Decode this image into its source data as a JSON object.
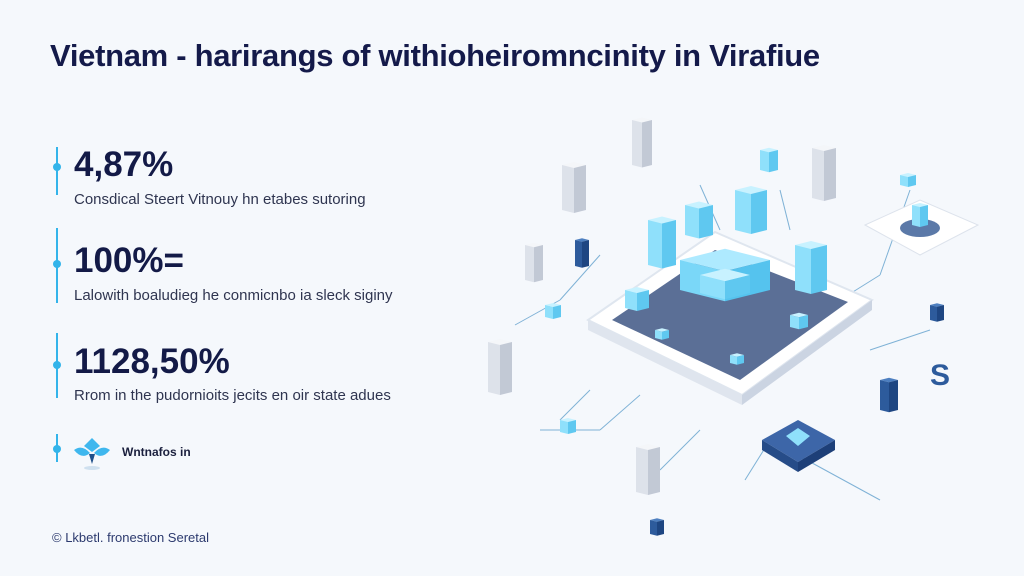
{
  "title": "Vietnam - harirangs of withioheiromncinity in Virafiue",
  "stats": [
    {
      "value": "4,87%",
      "description": "Consdical Steert Vitnouy hn etabes sutoring"
    },
    {
      "value": "100%=",
      "description": "Lalowith boaludieg he conmicnbo ia sleck siginy"
    },
    {
      "value": "1128,50%",
      "description": "Rrom in the pudornioits jecits en oir state adues"
    }
  ],
  "logo": {
    "icon": "lotus-logo-icon",
    "label": "Wntnafos in"
  },
  "footer": {
    "icon": "copyright-icon",
    "text": "© Lkbetl. fronestion Seretal"
  },
  "colors": {
    "accent": "#33b4ea",
    "heading": "#131a47",
    "platform": "#5b6f96",
    "cube": "#8fe0fb"
  }
}
